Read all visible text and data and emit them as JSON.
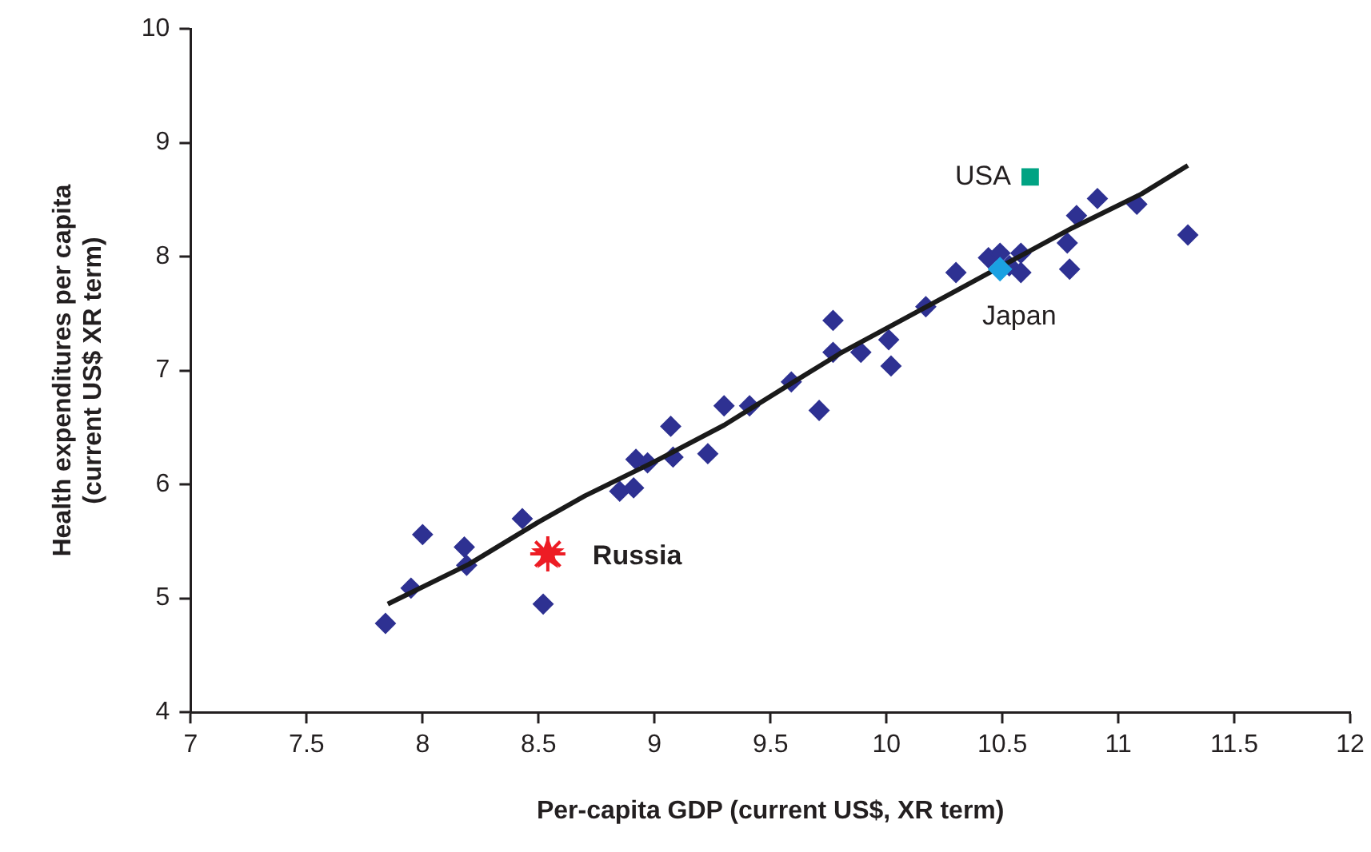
{
  "chart_data": {
    "type": "scatter",
    "xlabel": "Per-capita GDP (current US$, XR term)",
    "ylabel": "Health expenditures per capita\n(current US$ XR term)",
    "xlim": [
      7,
      12
    ],
    "xticks": [
      7,
      7.5,
      8,
      8.5,
      9,
      9.5,
      10,
      10.5,
      11,
      11.5,
      12
    ],
    "ylim": [
      4,
      10
    ],
    "yticks": [
      4,
      5,
      6,
      7,
      8,
      9,
      10
    ],
    "grid": false,
    "series": [
      {
        "marker": "diamond",
        "color": "#2e3192",
        "x": [
          7.84,
          7.95,
          8.0,
          8.18,
          8.19,
          8.43,
          8.52,
          8.85,
          8.91,
          8.92,
          8.97,
          9.07,
          9.08,
          9.23,
          9.3,
          9.41,
          9.59,
          9.71,
          9.77,
          9.77,
          9.89,
          10.01,
          10.02,
          10.17,
          10.3,
          10.44,
          10.49,
          10.53,
          10.58,
          10.58,
          10.78,
          10.79,
          10.82,
          10.91,
          11.08,
          11.3
        ],
        "values": [
          4.78,
          5.09,
          5.56,
          5.45,
          5.29,
          5.7,
          4.95,
          5.94,
          5.97,
          6.22,
          6.19,
          6.51,
          6.24,
          6.27,
          6.69,
          6.69,
          6.9,
          6.65,
          7.44,
          7.16,
          7.16,
          7.27,
          7.04,
          7.56,
          7.86,
          7.99,
          8.03,
          7.92,
          7.86,
          8.03,
          8.12,
          7.89,
          8.36,
          8.51,
          8.46,
          8.19
        ]
      },
      {
        "type": "line",
        "marker": "none",
        "line_style": "solid",
        "color": "#1a1a1a",
        "x": [
          7.85,
          8.2,
          8.5,
          8.7,
          9.0,
          9.3,
          9.6,
          9.8,
          10.0,
          10.3,
          10.5,
          10.8,
          11.1,
          11.3
        ],
        "values": [
          4.95,
          5.3,
          5.67,
          5.9,
          6.2,
          6.52,
          6.9,
          7.15,
          7.37,
          7.7,
          7.92,
          8.25,
          8.55,
          8.8
        ]
      },
      {
        "type": "scatter",
        "name": "USA",
        "marker": "square",
        "color": "#00a383",
        "x": [
          10.62
        ],
        "values": [
          8.7
        ]
      },
      {
        "type": "scatter",
        "name": "Japan",
        "marker": "diamond",
        "color": "#1ba1e2",
        "x": [
          10.49
        ],
        "values": [
          7.89
        ]
      },
      {
        "type": "scatter",
        "name": "Russia",
        "marker": "star",
        "color": "#ed1c24",
        "x": [
          8.54
        ],
        "values": [
          5.39
        ]
      }
    ]
  }
}
